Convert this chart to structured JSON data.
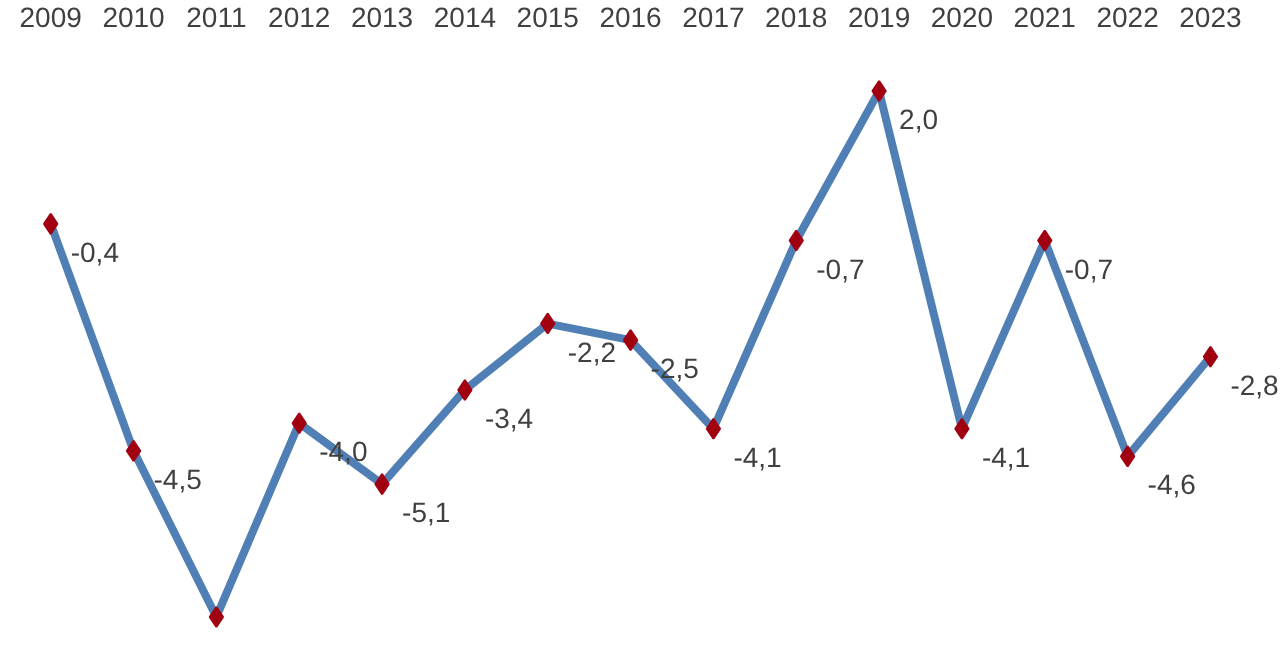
{
  "chart_data": {
    "type": "line",
    "categories": [
      "2009",
      "2010",
      "2011",
      "2012",
      "2013",
      "2014",
      "2015",
      "2016",
      "2017",
      "2018",
      "2019",
      "2020",
      "2021",
      "2022",
      "2023"
    ],
    "series": [
      {
        "color": "#4f7fb5",
        "values": [
          -0.4,
          -4.5,
          -7.5,
          -4.0,
          -5.1,
          -3.4,
          -2.2,
          -2.5,
          -4.1,
          -0.7,
          2.0,
          -4.1,
          -0.7,
          -4.6,
          -2.8
        ],
        "value_labels": [
          "-0,4",
          "-4,5",
          null,
          "-4,0",
          "-5,1",
          "-3,4",
          "-2,2",
          "-2,5",
          "-4,1",
          "-0,7",
          "2,0",
          "-4,1",
          "-0,7",
          "-4,6",
          "-2,8"
        ]
      }
    ],
    "marker": "diamond",
    "line_style": "solid",
    "grid": false
  }
}
